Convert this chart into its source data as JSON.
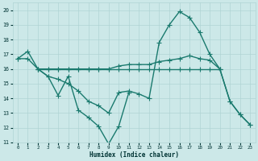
{
  "xlabel": "Humidex (Indice chaleur)",
  "xlim": [
    -0.5,
    23.5
  ],
  "ylim": [
    11,
    20.5
  ],
  "xticks": [
    0,
    1,
    2,
    3,
    4,
    5,
    6,
    7,
    8,
    9,
    10,
    11,
    12,
    13,
    14,
    15,
    16,
    17,
    18,
    19,
    20,
    21,
    22,
    23
  ],
  "yticks": [
    11,
    12,
    13,
    14,
    15,
    16,
    17,
    18,
    19,
    20
  ],
  "background_color": "#cce8e8",
  "grid_color": "#b0d4d4",
  "line_color": "#1a7a6e",
  "line_width": 1.0,
  "marker": "+",
  "marker_size": 4,
  "series": [
    {
      "x": [
        0,
        1,
        2,
        3,
        4,
        5,
        6,
        7,
        8,
        9,
        10,
        11
      ],
      "y": [
        16.7,
        17.2,
        16.0,
        15.5,
        14.2,
        15.5,
        13.2,
        12.7,
        12.1,
        10.9,
        12.1,
        14.4
      ]
    },
    {
      "x": [
        2,
        3,
        4,
        5,
        6,
        7,
        8,
        9,
        10,
        11,
        12,
        13,
        14,
        15,
        16,
        17,
        18,
        19,
        20
      ],
      "y": [
        16.0,
        16.0,
        16.0,
        16.0,
        16.0,
        16.0,
        16.0,
        16.0,
        16.0,
        16.0,
        16.0,
        16.0,
        16.0,
        16.0,
        16.0,
        16.0,
        16.0,
        16.0,
        16.0
      ]
    },
    {
      "x": [
        2,
        3,
        4,
        5,
        6,
        7,
        8,
        9,
        10,
        11,
        12,
        13,
        14,
        15,
        16,
        17,
        18,
        19,
        20,
        21,
        22,
        23
      ],
      "y": [
        16.0,
        15.5,
        15.3,
        15.0,
        14.5,
        13.8,
        13.5,
        13.0,
        14.4,
        14.5,
        14.3,
        14.0,
        17.8,
        19.0,
        19.9,
        19.5,
        18.5,
        17.0,
        16.0,
        13.8,
        12.9,
        12.2
      ]
    },
    {
      "x": [
        0,
        1,
        2,
        3,
        4,
        5,
        6,
        7,
        8,
        9,
        10,
        11,
        12,
        13,
        14,
        15,
        16,
        17,
        18,
        19,
        20,
        21,
        22,
        23
      ],
      "y": [
        16.7,
        16.7,
        16.0,
        16.0,
        16.0,
        16.0,
        16.0,
        16.0,
        16.0,
        16.0,
        16.2,
        16.3,
        16.3,
        16.3,
        16.5,
        16.6,
        16.7,
        16.9,
        16.7,
        16.6,
        16.0,
        13.8,
        12.9,
        12.2
      ]
    }
  ]
}
